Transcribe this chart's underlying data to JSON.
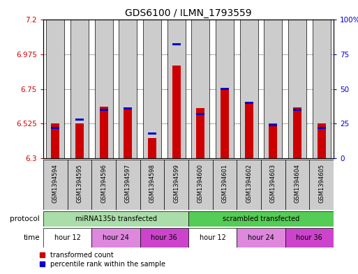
{
  "title": "GDS6100 / ILMN_1793559",
  "samples": [
    "GSM1394594",
    "GSM1394595",
    "GSM1394596",
    "GSM1394597",
    "GSM1394598",
    "GSM1394599",
    "GSM1394600",
    "GSM1394601",
    "GSM1394602",
    "GSM1394603",
    "GSM1394604",
    "GSM1394605"
  ],
  "red_values": [
    6.525,
    6.525,
    6.635,
    6.625,
    6.43,
    6.9,
    6.625,
    6.75,
    6.66,
    6.525,
    6.63,
    6.525
  ],
  "blue_values": [
    22,
    28,
    35,
    36,
    18,
    82,
    32,
    50,
    40,
    24,
    35,
    22
  ],
  "ymin": 6.3,
  "ymax": 7.2,
  "yticks_red": [
    6.3,
    6.525,
    6.75,
    6.975,
    7.2
  ],
  "yticks_blue": [
    0,
    25,
    50,
    75,
    100
  ],
  "ytick_labels_red": [
    "6.3",
    "6.525",
    "6.75",
    "6.975",
    "7.2"
  ],
  "ytick_labels_blue": [
    "0",
    "25",
    "50",
    "75",
    "100%"
  ],
  "red_color": "#cc0000",
  "blue_color": "#0000cc",
  "bar_bg": "#cccccc",
  "protocol_green_light": "#aaddaa",
  "protocol_green_bright": "#55cc55",
  "time_colors": [
    "#ffffff",
    "#dd88dd",
    "#cc44cc",
    "#ffffff",
    "#dd88dd",
    "#cc44cc"
  ],
  "protocol_labels": [
    "miRNA135b transfected",
    "scrambled transfected"
  ],
  "time_labels": [
    "hour 12",
    "hour 24",
    "hour 36",
    "hour 12",
    "hour 24",
    "hour 36"
  ],
  "legend_red": "transformed count",
  "legend_blue": "percentile rank within the sample",
  "protocol_row_label": "protocol",
  "time_row_label": "time"
}
